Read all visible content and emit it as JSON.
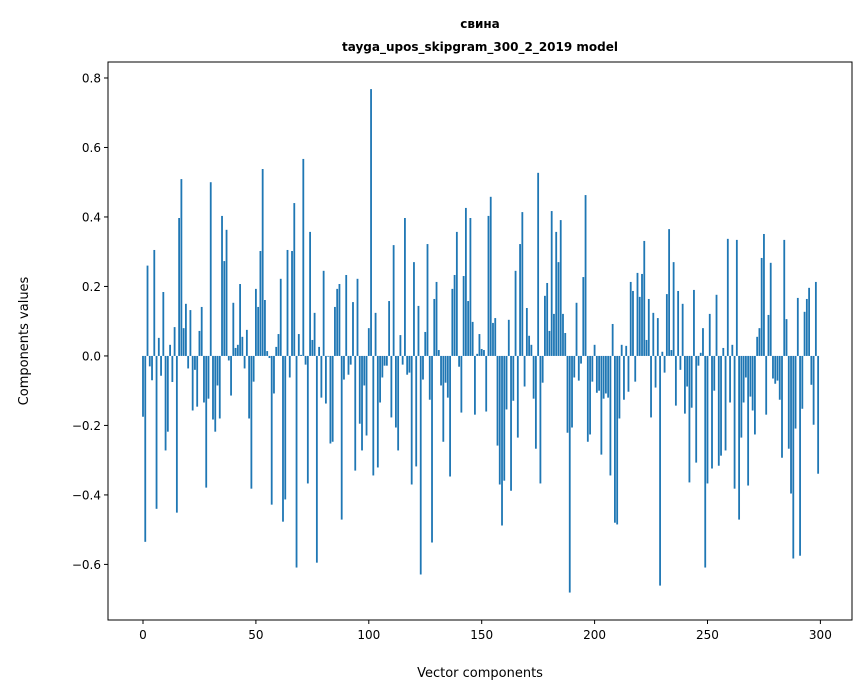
{
  "chart_data": {
    "type": "bar",
    "title": "свина",
    "subtitle": "tayga_upos_skipgram_300_2_2019 model",
    "xlabel": "Vector components",
    "ylabel": "Components values",
    "xlim": [
      -15.5,
      314
    ],
    "ylim": [
      -0.76,
      0.846
    ],
    "xticks": [
      0,
      50,
      100,
      150,
      200,
      250,
      300
    ],
    "xtick_labels": [
      "0",
      "50",
      "100",
      "150",
      "200",
      "250",
      "300"
    ],
    "yticks": [
      -0.6,
      -0.4,
      -0.2,
      0.0,
      0.2,
      0.4,
      0.6,
      0.8
    ],
    "ytick_labels": [
      "−0.6",
      "−0.4",
      "−0.2",
      "0.0",
      "0.2",
      "0.4",
      "0.6",
      "0.8"
    ],
    "grid": false,
    "bar_color": "#1f77b4",
    "values": [
      -0.175,
      -0.535,
      0.26,
      -0.03,
      -0.07,
      0.305,
      -0.44,
      0.052,
      -0.057,
      0.184,
      -0.272,
      -0.218,
      0.032,
      -0.075,
      0.083,
      -0.451,
      0.397,
      0.509,
      0.08,
      0.15,
      -0.036,
      0.132,
      -0.157,
      -0.04,
      -0.146,
      0.072,
      0.141,
      -0.134,
      -0.379,
      -0.123,
      0.5,
      -0.183,
      -0.218,
      -0.085,
      -0.18,
      0.403,
      0.273,
      0.363,
      -0.013,
      -0.114,
      0.153,
      0.023,
      0.032,
      0.207,
      0.055,
      -0.036,
      0.075,
      -0.18,
      -0.382,
      -0.074,
      0.193,
      0.141,
      0.302,
      0.538,
      0.161,
      0.014,
      -0.006,
      -0.428,
      -0.108,
      0.026,
      0.063,
      0.222,
      -0.477,
      -0.413,
      0.305,
      -0.062,
      0.302,
      0.44,
      -0.609,
      0.063,
      0.003,
      0.567,
      -0.025,
      -0.367,
      0.357,
      0.046,
      0.124,
      -0.595,
      0.026,
      -0.12,
      0.245,
      -0.137,
      -0.002,
      -0.252,
      -0.247,
      0.141,
      0.193,
      0.207,
      -0.471,
      -0.068,
      0.233,
      -0.054,
      -0.025,
      0.155,
      -0.33,
      0.222,
      -0.195,
      -0.272,
      -0.085,
      -0.229,
      0.08,
      0.768,
      -0.344,
      0.124,
      -0.321,
      -0.134,
      -0.062,
      -0.028,
      -0.028,
      0.158,
      -0.177,
      0.319,
      -0.206,
      -0.272,
      0.06,
      -0.025,
      0.397,
      -0.054,
      -0.048,
      -0.37,
      0.27,
      -0.318,
      0.144,
      -0.629,
      -0.068,
      0.069,
      0.322,
      -0.126,
      -0.537,
      0.164,
      0.213,
      0.017,
      -0.085,
      -0.247,
      -0.077,
      -0.12,
      -0.347,
      0.193,
      0.233,
      0.357,
      -0.031,
      -0.163,
      0.23,
      0.426,
      0.158,
      0.397,
      0.098,
      -0.169,
      0.006,
      0.063,
      0.02,
      0.017,
      -0.16,
      0.403,
      0.458,
      0.095,
      0.109,
      -0.258,
      -0.37,
      -0.488,
      -0.359,
      -0.154,
      0.104,
      -0.388,
      -0.129,
      0.245,
      -0.235,
      0.322,
      0.414,
      -0.088,
      0.138,
      0.058,
      0.032,
      -0.123,
      -0.267,
      0.527,
      -0.367,
      -0.077,
      0.173,
      0.21,
      0.072,
      0.417,
      0.121,
      0.357,
      0.27,
      0.391,
      0.121,
      0.066,
      -0.221,
      -0.681,
      -0.206,
      -0.062,
      0.153,
      -0.071,
      -0.022,
      0.227,
      0.463,
      -0.247,
      -0.226,
      -0.074,
      0.032,
      -0.106,
      -0.1,
      -0.284,
      -0.123,
      -0.108,
      -0.12,
      -0.344,
      0.092,
      -0.48,
      -0.485,
      -0.18,
      0.032,
      -0.126,
      0.029,
      -0.103,
      0.213,
      0.187,
      -0.074,
      0.239,
      0.17,
      0.236,
      0.331,
      0.046,
      0.164,
      -0.177,
      0.124,
      -0.091,
      0.109,
      -0.661,
      0.012,
      -0.048,
      0.178,
      0.365,
      0.017,
      0.27,
      -0.143,
      0.187,
      -0.04,
      0.15,
      -0.166,
      -0.088,
      -0.364,
      -0.149,
      0.19,
      -0.307,
      -0.028,
      0.009,
      0.08,
      -0.609,
      -0.367,
      0.121,
      -0.324,
      -0.1,
      0.176,
      -0.316,
      -0.287,
      0.023,
      -0.272,
      0.337,
      -0.134,
      0.032,
      -0.382,
      0.334,
      -0.471,
      -0.235,
      -0.134,
      -0.062,
      -0.373,
      -0.117,
      -0.157,
      -0.226,
      0.055,
      0.08,
      0.282,
      0.351,
      -0.169,
      0.118,
      0.268,
      -0.065,
      -0.08,
      -0.071,
      -0.126,
      -0.293,
      0.334,
      0.106,
      -0.267,
      -0.396,
      -0.583,
      -0.209,
      0.167,
      -0.575,
      -0.152,
      0.127,
      0.164,
      0.196,
      -0.083,
      -0.198,
      0.213,
      -0.339
    ]
  }
}
